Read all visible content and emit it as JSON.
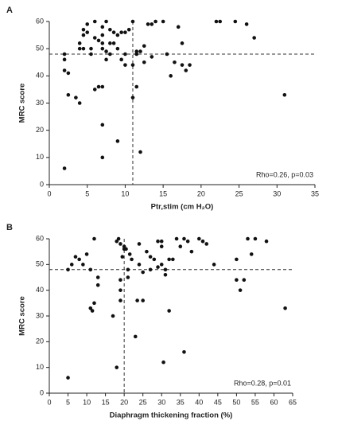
{
  "chart_data": [
    {
      "type": "scatter",
      "panel_label": "A",
      "y_label": "MRC score",
      "x_label": "Ptr,stim (cm H₂O)",
      "annotation": "Rho=0.26, p=0.03",
      "color": "#111111",
      "xlim": [
        0,
        35
      ],
      "ylim": [
        0,
        60
      ],
      "xticks": [
        0,
        5,
        10,
        15,
        20,
        25,
        30,
        35
      ],
      "yticks": [
        0,
        10,
        20,
        30,
        40,
        50,
        60
      ],
      "reference_lines": {
        "x": 11,
        "y": 48
      },
      "x": [
        2,
        2,
        2,
        2,
        2.5,
        2.5,
        3.5,
        4,
        4,
        4,
        4.5,
        4.5,
        4.5,
        5,
        5,
        5.5,
        5.5,
        6,
        6,
        6,
        6.5,
        7,
        7,
        7,
        6.5,
        7,
        7,
        7,
        7,
        7.5,
        7.5,
        7.5,
        8,
        8,
        8,
        8.5,
        8.5,
        9,
        9,
        9,
        9.5,
        9.5,
        10,
        10,
        10,
        10.5,
        11,
        11,
        11,
        11.5,
        11.5,
        11.5,
        12,
        12,
        12.5,
        12.5,
        13,
        13.5,
        13.5,
        14,
        15,
        15.5,
        16,
        16.5,
        17,
        17.5,
        17.5,
        18,
        18.5,
        22,
        22.5,
        24.5,
        26,
        27,
        31
      ],
      "y": [
        6,
        48,
        46,
        42,
        41,
        33,
        32,
        30,
        50,
        52,
        50,
        57,
        55,
        59,
        56,
        48,
        50,
        60,
        54,
        35,
        36,
        36,
        22,
        10,
        53,
        58,
        55,
        52,
        50,
        60,
        49,
        46,
        57,
        52,
        48,
        56,
        52,
        55,
        50,
        16,
        46,
        56,
        56,
        48,
        44,
        57,
        60,
        44,
        32,
        49,
        36,
        48,
        49,
        12,
        51,
        45,
        59,
        47,
        59,
        60,
        60,
        48,
        40,
        45,
        58,
        52,
        44,
        42,
        44,
        60,
        60,
        60,
        59,
        54,
        33
      ]
    },
    {
      "type": "scatter",
      "panel_label": "B",
      "y_label": "MRC score",
      "x_label": "Diaphragm thickening fraction (%)",
      "annotation": "Rho=0.28, p=0.01",
      "color": "#111111",
      "xlim": [
        0,
        65
      ],
      "ylim": [
        0,
        60
      ],
      "xticks": [
        0,
        5,
        10,
        15,
        20,
        25,
        30,
        35,
        40,
        45,
        50,
        55,
        60,
        65
      ],
      "yticks": [
        0,
        10,
        20,
        30,
        40,
        50,
        60
      ],
      "reference_lines": {
        "x": 20,
        "y": 48
      },
      "x": [
        5,
        5,
        6,
        7,
        8,
        9,
        10,
        11,
        11,
        11.5,
        12,
        12,
        13,
        13,
        17,
        18,
        18,
        18.5,
        19,
        19,
        19,
        19,
        19.5,
        20,
        20,
        20.5,
        21,
        21,
        21.5,
        22,
        23,
        23.5,
        24,
        24,
        25,
        25,
        26,
        27,
        27,
        28,
        29,
        29,
        30,
        30,
        30,
        30.5,
        31,
        31,
        32,
        32,
        33,
        34,
        35,
        36,
        36,
        37,
        38,
        40,
        41,
        42,
        44,
        50,
        50,
        51,
        52,
        53,
        54,
        55,
        58,
        63
      ],
      "y": [
        6,
        48,
        50,
        53,
        52,
        50,
        54,
        48,
        33,
        32,
        35,
        60,
        45,
        42,
        30,
        10,
        59,
        60,
        58,
        40,
        36,
        44,
        53,
        56,
        57,
        56,
        48,
        45,
        54,
        52,
        22,
        36,
        50,
        58,
        36,
        47,
        55,
        53,
        48,
        52,
        49,
        59,
        59,
        57,
        50,
        12,
        46,
        48,
        32,
        52,
        52,
        60,
        57,
        16,
        60,
        59,
        55,
        60,
        59,
        58,
        50,
        52,
        44,
        40,
        44,
        60,
        54,
        60,
        59,
        33
      ]
    }
  ]
}
